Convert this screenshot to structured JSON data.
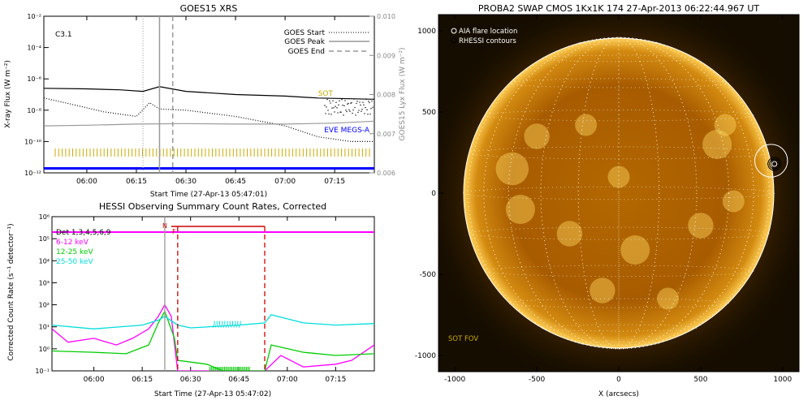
{
  "chart_data": [
    {
      "type": "line",
      "title": "GOES15 XRS",
      "xlabel": "Start Time (27-Apr-13 05:47:01)",
      "ylabel": "X-ray Flux (W m⁻²)",
      "y2label": "GOES15 Lyx Flux (W m⁻²)",
      "yscale": "log",
      "xlim": [
        "05:47",
        "07:27"
      ],
      "ylim": [
        1e-12,
        0.01
      ],
      "y2lim": [
        0.006,
        0.01
      ],
      "xticks": [
        "06:00",
        "06:15",
        "06:30",
        "06:45",
        "07:00",
        "07:15"
      ],
      "yticks": [
        "10⁻¹²",
        "10⁻¹⁰",
        "10⁻⁸",
        "10⁻⁶",
        "10⁻⁴",
        "10⁻²"
      ],
      "y2ticks": [
        "0.006",
        "0.007",
        "0.008",
        "0.009",
        "0.010"
      ],
      "annotation": "C3.1",
      "legend": [
        "GOES Start",
        "GOES Peak",
        "GOES End"
      ],
      "legend_position": "top-right",
      "markers": [
        {
          "name": "GOES Start",
          "x": "06:17",
          "style": "dotted"
        },
        {
          "name": "GOES Peak",
          "x": "06:22",
          "style": "solid"
        },
        {
          "name": "GOES End",
          "x": "06:26",
          "style": "dashed"
        }
      ],
      "labels": [
        {
          "text": "SOT",
          "color": "#ccaa00"
        },
        {
          "text": "EVE MEGS-A",
          "color": "#0000ff"
        }
      ],
      "series": [
        {
          "name": "",
          "color": "#000000",
          "style": "solid",
          "x": [
            "05:47",
            "06:00",
            "06:10",
            "06:17",
            "06:22",
            "06:30",
            "06:45",
            "07:00",
            "07:10",
            "07:27"
          ],
          "y": [
            2.5e-07,
            2.3e-07,
            2e-07,
            1.6e-07,
            3.2e-07,
            1.6e-07,
            1e-07,
            8e-08,
            6e-08,
            5e-08
          ]
        },
        {
          "name": "",
          "color": "#000000",
          "style": "dotted",
          "x": [
            "05:47",
            "05:55",
            "06:05",
            "06:15",
            "06:19",
            "06:22",
            "06:30",
            "06:45",
            "07:00",
            "07:10",
            "07:20",
            "07:27"
          ],
          "y": [
            6e-08,
            2.5e-08,
            8e-09,
            4e-09,
            3e-08,
            1.2e-08,
            1e-08,
            4e-09,
            1e-09,
            2e-10,
            1e-10,
            1e-10
          ]
        },
        {
          "name": "",
          "color": "#999999",
          "style": "solid",
          "x": [
            "05:47",
            "06:00",
            "06:15",
            "06:30",
            "06:45",
            "07:00",
            "07:15",
            "07:27"
          ],
          "y": [
            1e-09,
            1.1e-09,
            1.3e-09,
            1.4e-09,
            1.3e-09,
            1.3e-09,
            1.5e-09,
            2e-09
          ]
        }
      ]
    },
    {
      "type": "line",
      "title": "HESSI Observing Summary Count Rates, Corrected",
      "xlabel": "Start Time (27-Apr-13 05:47:02)",
      "ylabel": "Corrected Count Rate (s⁻¹ detector⁻¹)",
      "yscale": "log",
      "xlim": [
        "05:47",
        "07:27"
      ],
      "ylim": [
        0.1,
        1000000.0
      ],
      "xticks": [
        "06:00",
        "06:15",
        "06:30",
        "06:45",
        "07:00",
        "07:15"
      ],
      "yticks": [
        "10⁻¹",
        "10⁰",
        "10¹",
        "10²",
        "10³",
        "10⁴",
        "10⁵",
        "10⁶"
      ],
      "legend": [
        {
          "text": "Det 1,3,4,5,6,9",
          "color": "#000000"
        },
        {
          "text": "6-12 keV",
          "color": "#ff00ff"
        },
        {
          "text": "12-25 keV",
          "color": "#00cc00"
        },
        {
          "text": "25-50 keV",
          "color": "#00dddd"
        }
      ],
      "legend_position": "top-left",
      "flags": [
        {
          "text": "N",
          "x": "06:22",
          "color": "#cc0000"
        },
        {
          "text": "F",
          "x": "06:25",
          "color": "#cc0000"
        }
      ],
      "markers": [
        {
          "x": "06:22",
          "style": "solid",
          "color": "#999999"
        },
        {
          "x": "06:26",
          "style": "dashed",
          "color": "#cc0000"
        },
        {
          "x": "06:53",
          "style": "dashed",
          "color": "#cc0000"
        }
      ],
      "series": [
        {
          "name": "6-12 keV",
          "color": "#ff00ff",
          "x": [
            "05:47",
            "05:52",
            "06:00",
            "06:07",
            "06:12",
            "06:17",
            "06:20",
            "06:22",
            "06:24",
            "06:26",
            "06:53",
            "06:58",
            "07:05",
            "07:15",
            "07:20",
            "07:27"
          ],
          "y": [
            8,
            2,
            3,
            1.5,
            3,
            8,
            30,
            100,
            30,
            0.1,
            0.1,
            0.5,
            0.15,
            0.2,
            0.3,
            1.5
          ]
        },
        {
          "name": "12-25 keV",
          "color": "#00cc00",
          "x": [
            "05:47",
            "06:00",
            "06:10",
            "06:17",
            "06:20",
            "06:22",
            "06:25",
            "06:26",
            "06:35",
            "06:40",
            "06:53",
            "06:55",
            "07:05",
            "07:15",
            "07:27"
          ],
          "y": [
            0.8,
            0.7,
            0.6,
            1.5,
            15,
            50,
            3,
            0.3,
            0.2,
            0.1,
            0.1,
            1.5,
            0.7,
            0.5,
            0.6
          ]
        },
        {
          "name": "25-50 keV",
          "color": "#00dddd",
          "x": [
            "05:47",
            "06:00",
            "06:15",
            "06:20",
            "06:22",
            "06:26",
            "06:30",
            "06:45",
            "06:53",
            "06:55",
            "07:05",
            "07:15",
            "07:27"
          ],
          "y": [
            12,
            8,
            12,
            20,
            30,
            12,
            9,
            12,
            15,
            35,
            15,
            12,
            14
          ]
        },
        {
          "name": "Det 1,3,4,5,6,9",
          "color": "#ff00ff",
          "x": [
            "05:47",
            "06:25",
            "06:53",
            "07:27"
          ],
          "y": [
            200000.0,
            200000.0,
            200000.0,
            200000.0
          ]
        }
      ]
    },
    {
      "type": "scatter",
      "title": "PROBA2 SWAP CMOS 1Kx1K 174 27-Apr-2013 06:22:44.967 UT",
      "xlabel": "X (arcsecs)",
      "ylabel": "",
      "xlim": [
        -1100,
        1100
      ],
      "ylim": [
        -1100,
        1100
      ],
      "xticks": [
        "-1000",
        "-500",
        "0",
        "500",
        "1000"
      ],
      "yticks": [
        "-1000",
        "-500",
        "0",
        "500",
        "1000"
      ],
      "legend": [
        "AIA flare location",
        "RHESSI contours"
      ],
      "legend_position": "top-left",
      "annotation": "SOT FOV",
      "solar_radius": 950,
      "flare": {
        "x": 950,
        "y": 180
      },
      "sot_fov": {
        "x": 930,
        "y": 200,
        "r": 100
      }
    }
  ]
}
